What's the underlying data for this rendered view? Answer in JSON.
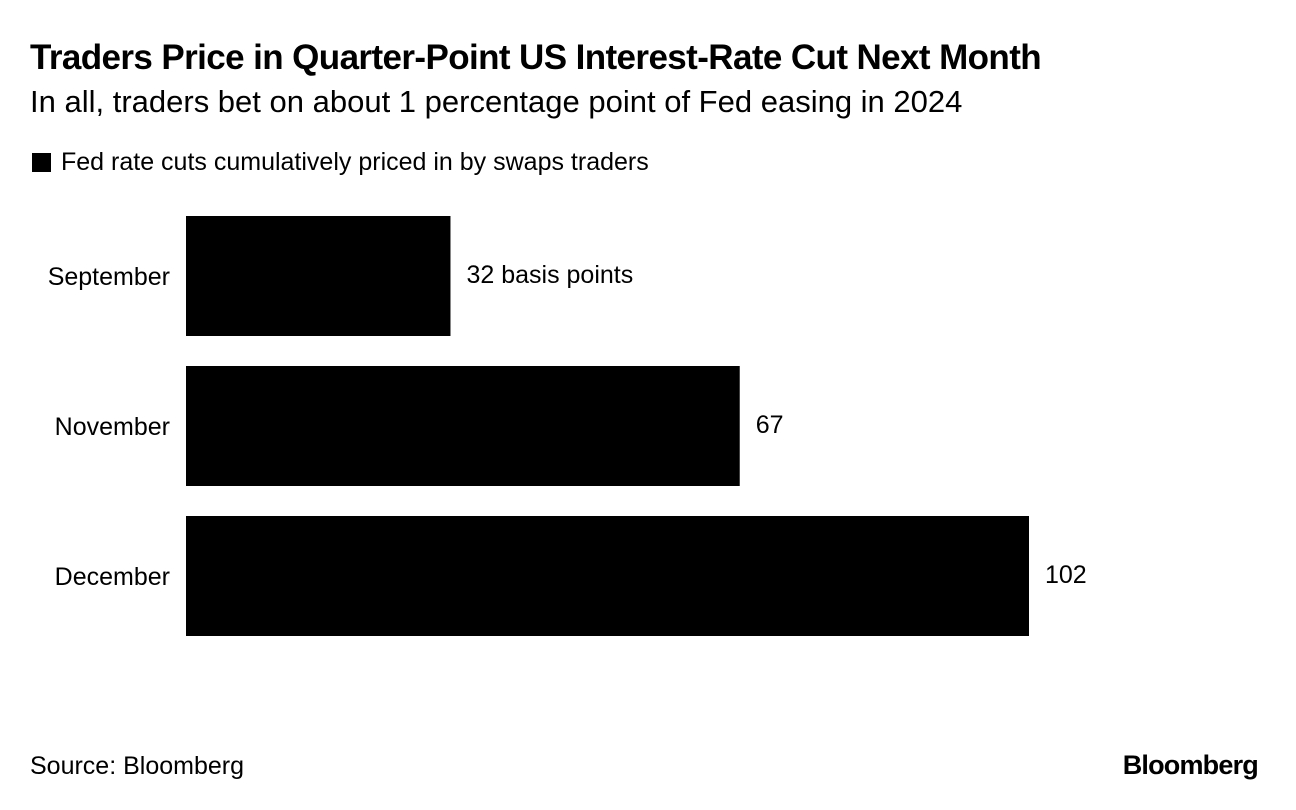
{
  "title": "Traders Price in Quarter-Point US Interest-Rate Cut Next Month",
  "subtitle": "In all, traders bet on about 1 percentage point of Fed easing in 2024",
  "legend": {
    "label": "Fed rate cuts cumulatively priced in by swaps traders",
    "color": "#000000"
  },
  "chart_data": {
    "type": "bar",
    "orientation": "horizontal",
    "categories": [
      "September",
      "November",
      "December"
    ],
    "values": [
      32,
      67,
      102
    ],
    "data_labels": [
      "32 basis points",
      "67",
      "102"
    ],
    "series": [
      {
        "name": "Fed rate cuts cumulatively priced in by swaps traders",
        "values": [
          32,
          67,
          102
        ]
      }
    ],
    "unit": "basis points",
    "xlim": [
      0,
      102
    ],
    "grid": false,
    "legend_position": "top-left"
  },
  "source": "Source: Bloomberg",
  "logo": "Bloomberg"
}
